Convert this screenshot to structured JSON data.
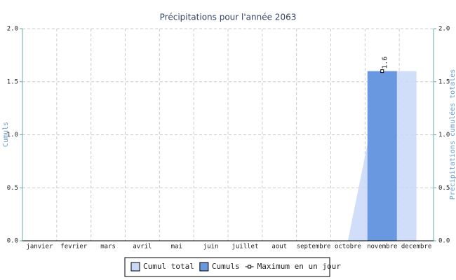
{
  "chart_data": {
    "type": "bar",
    "title": "Précipitations pour l'année 2063",
    "y_label": "Cumuls",
    "y2_label": "Précipitations cumulées totales",
    "categories": [
      "janvier",
      "fevrier",
      "mars",
      "avril",
      "mai",
      "juin",
      "juillet",
      "aout",
      "septembre",
      "octobre",
      "novembre",
      "decembre"
    ],
    "series": [
      {
        "name": "Cumul total",
        "type": "area",
        "axis": "y2",
        "color": "#c8d8f8",
        "values": [
          0,
          0,
          0,
          0,
          0,
          0,
          0,
          0,
          0,
          0,
          1.6,
          1.6
        ]
      },
      {
        "name": "Cumuls",
        "type": "bar",
        "color": "#6a98e0",
        "values": [
          0,
          0,
          0,
          0,
          0,
          0,
          0,
          0,
          0,
          0,
          1.6,
          0
        ]
      },
      {
        "name": "Maximum en un jour",
        "type": "line",
        "color": "#000000",
        "values": [
          null,
          null,
          null,
          null,
          null,
          null,
          null,
          null,
          null,
          null,
          1.6,
          null
        ],
        "value_labels": [
          null,
          null,
          null,
          null,
          null,
          null,
          null,
          null,
          null,
          null,
          "1.6",
          null
        ]
      }
    ],
    "ylim": [
      0,
      2
    ],
    "yticks": [
      {
        "value": 0,
        "label": "0.0"
      },
      {
        "value": 0.5,
        "label": "0.5"
      },
      {
        "value": 1,
        "label": "1.0"
      },
      {
        "value": 1.5,
        "label": "1.5"
      },
      {
        "value": 2,
        "label": "2.0"
      }
    ],
    "y2lim": [
      0,
      2
    ],
    "y2ticks": [
      {
        "value": 0,
        "label": "0.0"
      },
      {
        "value": 0.5,
        "label": "0.5"
      },
      {
        "value": 1,
        "label": "1.0"
      },
      {
        "value": 1.5,
        "label": "1.5"
      },
      {
        "value": 2,
        "label": "2.0"
      }
    ],
    "grid": true,
    "legend": "bottom"
  }
}
